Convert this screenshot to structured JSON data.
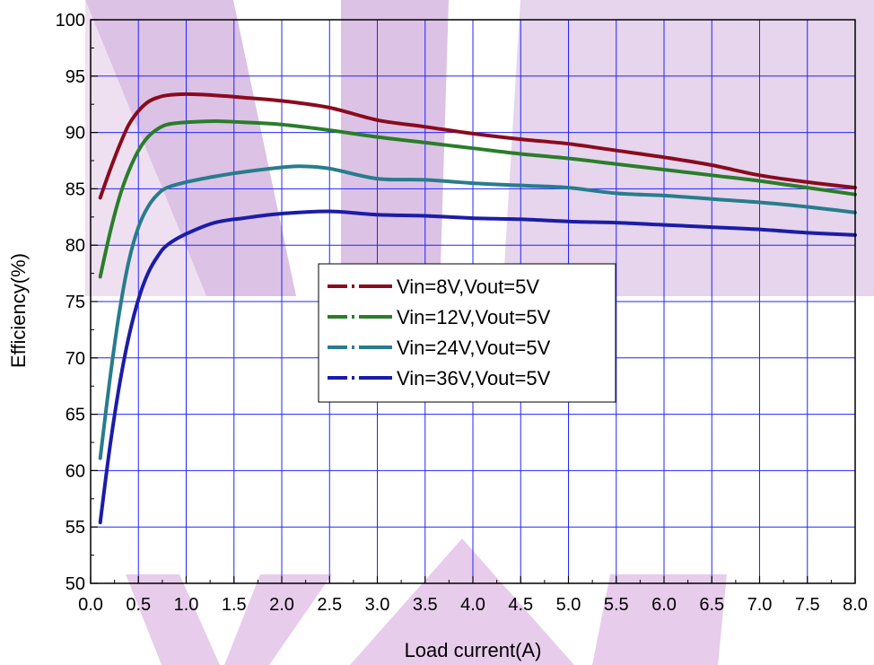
{
  "chart_data": {
    "type": "line",
    "title": "",
    "xlabel": "Load current(A)",
    "ylabel": "Efficiency(%)",
    "xlim": [
      0.0,
      8.0
    ],
    "ylim": [
      50,
      100
    ],
    "x_ticks": [
      "0.0",
      "0.5",
      "1.0",
      "1.5",
      "2.0",
      "2.5",
      "3.0",
      "3.5",
      "4.0",
      "4.5",
      "5.0",
      "5.5",
      "6.0",
      "6.5",
      "7.0",
      "7.5",
      "8.0"
    ],
    "y_ticks": [
      "50",
      "55",
      "60",
      "65",
      "70",
      "75",
      "80",
      "85",
      "90",
      "95",
      "100"
    ],
    "grid": true,
    "legend_position": "center",
    "series": [
      {
        "name": "Vin=8V,Vout=5V",
        "color": "#8b0a1e",
        "points": [
          [
            0.1,
            84.2
          ],
          [
            0.2,
            86.6
          ],
          [
            0.3,
            88.8
          ],
          [
            0.4,
            90.7
          ],
          [
            0.5,
            91.9
          ],
          [
            0.6,
            92.7
          ],
          [
            0.7,
            93.1
          ],
          [
            0.8,
            93.3
          ],
          [
            1.0,
            93.4
          ],
          [
            1.3,
            93.3
          ],
          [
            1.6,
            93.1
          ],
          [
            2.0,
            92.8
          ],
          [
            2.5,
            92.2
          ],
          [
            3.0,
            91.1
          ],
          [
            3.5,
            90.5
          ],
          [
            4.0,
            89.9
          ],
          [
            4.5,
            89.4
          ],
          [
            5.0,
            89.0
          ],
          [
            5.5,
            88.4
          ],
          [
            6.0,
            87.8
          ],
          [
            6.5,
            87.1
          ],
          [
            7.0,
            86.2
          ],
          [
            7.5,
            85.6
          ],
          [
            8.0,
            85.1
          ]
        ]
      },
      {
        "name": "Vin=12V,Vout=5V",
        "color": "#2a7d2a",
        "points": [
          [
            0.1,
            77.2
          ],
          [
            0.2,
            81.0
          ],
          [
            0.3,
            84.2
          ],
          [
            0.4,
            86.6
          ],
          [
            0.5,
            88.4
          ],
          [
            0.6,
            89.6
          ],
          [
            0.7,
            90.3
          ],
          [
            0.8,
            90.7
          ],
          [
            1.0,
            90.9
          ],
          [
            1.3,
            91.0
          ],
          [
            1.6,
            90.9
          ],
          [
            2.0,
            90.7
          ],
          [
            2.5,
            90.2
          ],
          [
            3.0,
            89.6
          ],
          [
            3.5,
            89.1
          ],
          [
            4.0,
            88.6
          ],
          [
            4.5,
            88.1
          ],
          [
            5.0,
            87.7
          ],
          [
            5.5,
            87.2
          ],
          [
            6.0,
            86.7
          ],
          [
            6.5,
            86.2
          ],
          [
            7.0,
            85.7
          ],
          [
            7.5,
            85.1
          ],
          [
            8.0,
            84.5
          ]
        ]
      },
      {
        "name": "Vin=24V,Vout=5V",
        "color": "#287c8c",
        "points": [
          [
            0.1,
            61.1
          ],
          [
            0.2,
            68.0
          ],
          [
            0.3,
            74.0
          ],
          [
            0.4,
            78.6
          ],
          [
            0.5,
            81.6
          ],
          [
            0.6,
            83.4
          ],
          [
            0.7,
            84.5
          ],
          [
            0.8,
            85.1
          ],
          [
            1.0,
            85.6
          ],
          [
            1.3,
            86.1
          ],
          [
            1.6,
            86.5
          ],
          [
            2.0,
            86.9
          ],
          [
            2.2,
            87.0
          ],
          [
            2.5,
            86.8
          ],
          [
            3.0,
            85.9
          ],
          [
            3.5,
            85.8
          ],
          [
            4.0,
            85.5
          ],
          [
            4.5,
            85.3
          ],
          [
            5.0,
            85.1
          ],
          [
            5.5,
            84.6
          ],
          [
            6.0,
            84.4
          ],
          [
            6.5,
            84.1
          ],
          [
            7.0,
            83.8
          ],
          [
            7.5,
            83.4
          ],
          [
            8.0,
            82.9
          ]
        ]
      },
      {
        "name": "Vin=36V,Vout=5V",
        "color": "#1c1ca8",
        "points": [
          [
            0.1,
            55.4
          ],
          [
            0.2,
            62.0
          ],
          [
            0.3,
            67.5
          ],
          [
            0.4,
            71.9
          ],
          [
            0.5,
            75.2
          ],
          [
            0.6,
            77.5
          ],
          [
            0.7,
            79.0
          ],
          [
            0.8,
            80.0
          ],
          [
            1.0,
            81.0
          ],
          [
            1.3,
            82.0
          ],
          [
            1.6,
            82.4
          ],
          [
            2.0,
            82.8
          ],
          [
            2.5,
            83.0
          ],
          [
            3.0,
            82.7
          ],
          [
            3.5,
            82.6
          ],
          [
            4.0,
            82.4
          ],
          [
            4.5,
            82.3
          ],
          [
            5.0,
            82.1
          ],
          [
            5.5,
            82.0
          ],
          [
            6.0,
            81.8
          ],
          [
            6.5,
            81.6
          ],
          [
            7.0,
            81.4
          ],
          [
            7.5,
            81.1
          ],
          [
            8.0,
            80.9
          ]
        ]
      }
    ]
  }
}
